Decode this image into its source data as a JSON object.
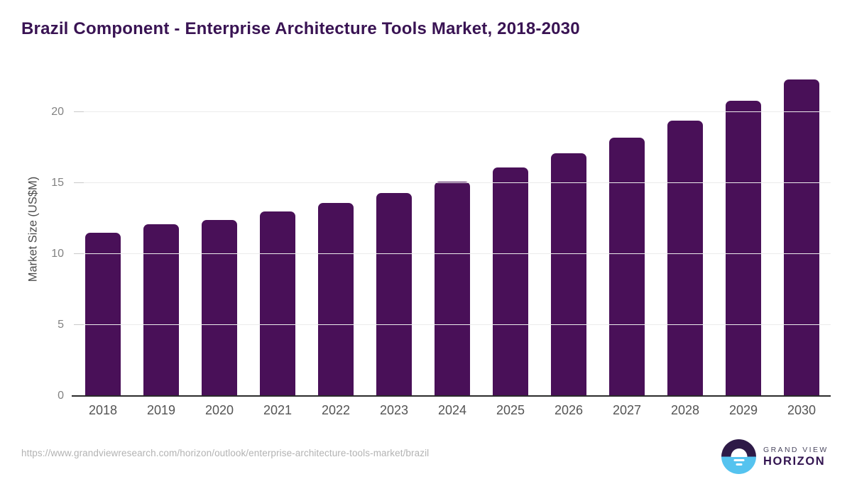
{
  "header": {
    "title": "Brazil Component - Enterprise Architecture Tools Market, 2018-2030"
  },
  "chart_data": {
    "type": "bar",
    "title": "Brazil Component - Enterprise Architecture Tools Market, 2018-2030",
    "categories": [
      "2018",
      "2019",
      "2020",
      "2021",
      "2022",
      "2023",
      "2024",
      "2025",
      "2026",
      "2027",
      "2028",
      "2029",
      "2030"
    ],
    "values": [
      11.5,
      12.1,
      12.4,
      13.0,
      13.6,
      14.3,
      15.1,
      16.1,
      17.1,
      18.2,
      19.4,
      20.8,
      22.3
    ],
    "xlabel": "",
    "ylabel": "Market Size (US$M)",
    "yticks": [
      0,
      5,
      10,
      15,
      20
    ],
    "ylim": [
      0,
      22.9
    ],
    "grid": "horizontal-only",
    "legend_position": "none",
    "bar_color": "#491058",
    "bar_corner_radius_px": 7
  },
  "footer": {
    "source_url": "https://www.grandviewresearch.com/horizon/outlook/enterprise-architecture-tools-market/brazil",
    "brand": {
      "name_top": "GRAND VIEW",
      "name_bottom": "HORIZON"
    }
  },
  "colors": {
    "title_text": "#391353",
    "bar": "#491058",
    "ytick_text": "#828282",
    "xtick_text": "#545454",
    "gridline": "#ebebeb",
    "tick_mark": "#c9c9c9",
    "baseline": "#2b2b2b",
    "url_text": "#b3b3b3",
    "logo_dark_purple": "#2e1a47",
    "logo_light_blue": "#55c3ef"
  }
}
